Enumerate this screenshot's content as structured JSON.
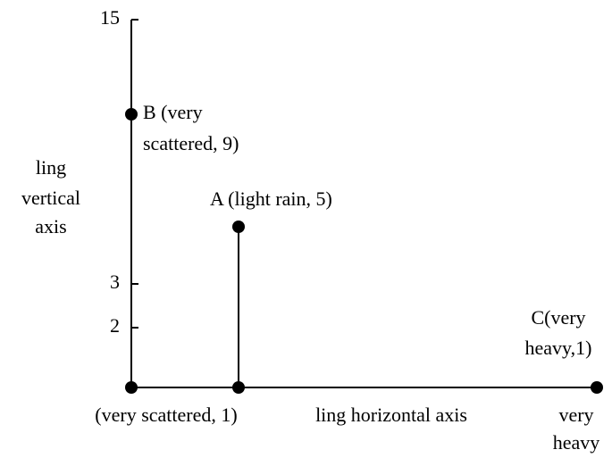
{
  "vertical_axis": {
    "label": [
      "ling",
      "vertical",
      "axis"
    ],
    "ticks": [
      "15",
      "3",
      "2"
    ]
  },
  "horizontal_axis": {
    "label": "ling horizontal axis",
    "origin_label": "(very scattered, 1)",
    "end_label": [
      "very",
      "heavy"
    ]
  },
  "points": [
    {
      "label": [
        "B (very",
        "scattered, 9)"
      ]
    },
    {
      "label": [
        "A (light rain, 5)"
      ]
    },
    {
      "label": [
        "C(very",
        "heavy,1)"
      ]
    }
  ]
}
